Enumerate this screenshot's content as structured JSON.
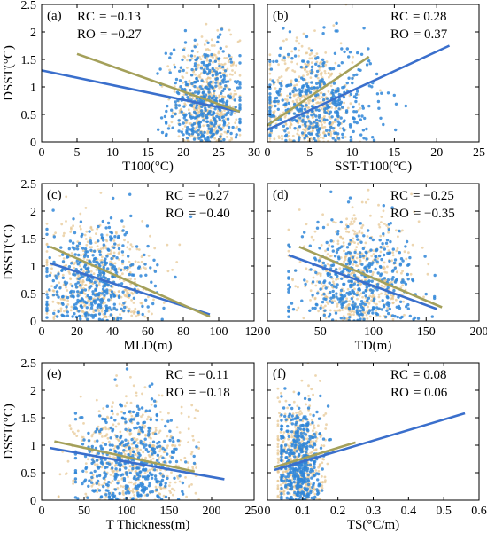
{
  "colors": {
    "cmip": "#2a6fd6",
    "obs": "#e2c48a",
    "cmip_line": "#3a6fcc",
    "obs_line": "#a4a05a",
    "scatter_cmip": "#2f86d8",
    "scatter_obs": "#e6c58f"
  },
  "chart_data": [
    {
      "type": "scatter",
      "panel": "(a)",
      "xlabel": "T100(°C)",
      "ylabel": "DSST(°C)",
      "xlim": [
        0,
        30
      ],
      "ylim": [
        0,
        2.5
      ],
      "xticks": [
        "0",
        "5",
        "10",
        "15",
        "20",
        "25",
        "30"
      ],
      "yticks": [
        "0",
        "0.5",
        "1",
        "1.5",
        "2",
        "2.5"
      ],
      "corr": {
        "c_label": "RC",
        "c_value": "= −0.13",
        "o_label": "RO",
        "o_value": "= −0.27"
      },
      "fits": [
        {
          "series": "cmip",
          "x": [
            0,
            28
          ],
          "y": [
            1.3,
            0.55
          ]
        },
        {
          "series": "obs",
          "x": [
            5,
            28
          ],
          "y": [
            1.6,
            0.55
          ]
        }
      ],
      "clouds": [
        {
          "series": "obs",
          "xc": 23.5,
          "xs": 2.2,
          "yc": 0.75,
          "ys": 0.55,
          "n": 500,
          "xmin": 17,
          "xmax": 28
        },
        {
          "series": "cmip",
          "xc": 23.0,
          "xs": 2.6,
          "yc": 0.7,
          "ys": 0.55,
          "n": 380,
          "xmin": 2,
          "xmax": 28
        }
      ]
    },
    {
      "type": "scatter",
      "panel": "(b)",
      "xlabel": "SST-T100(°C)",
      "ylabel": "",
      "xlim": [
        0,
        25
      ],
      "ylim": [
        0,
        2.5
      ],
      "xticks": [
        "0",
        "5",
        "10",
        "15",
        "20",
        "25"
      ],
      "yticks": [],
      "corr": {
        "c_label": "RC",
        "c_value": "= 0.28",
        "o_label": "RO",
        "o_value": "= 0.37"
      },
      "fits": [
        {
          "series": "cmip",
          "x": [
            0,
            21.5
          ],
          "y": [
            0.22,
            1.75
          ]
        },
        {
          "series": "obs",
          "x": [
            0,
            12
          ],
          "y": [
            0.3,
            1.55
          ]
        }
      ],
      "clouds": [
        {
          "series": "obs",
          "xc": 5,
          "xs": 2.6,
          "yc": 0.7,
          "ys": 0.55,
          "n": 480,
          "xmin": 0.3,
          "xmax": 14
        },
        {
          "series": "cmip",
          "xc": 6,
          "xs": 3.6,
          "yc": 0.7,
          "ys": 0.55,
          "n": 380,
          "xmin": 0.3,
          "xmax": 22
        }
      ]
    },
    {
      "type": "scatter",
      "panel": "(c)",
      "xlabel": "MLD(m)",
      "ylabel": "DSST(°C)",
      "xlim": [
        0,
        120
      ],
      "ylim": [
        0,
        2.5
      ],
      "xticks": [
        "0",
        "20",
        "40",
        "60",
        "80",
        "100",
        "120"
      ],
      "yticks": [
        "0",
        "0.5",
        "1",
        "1.5",
        "2",
        "2.5"
      ],
      "corr": {
        "c_label": "RC",
        "c_value": "= −0.27",
        "o_label": "RO",
        "o_value": "= −0.40"
      },
      "fits": [
        {
          "series": "cmip",
          "x": [
            5,
            95
          ],
          "y": [
            1.05,
            0.12
          ]
        },
        {
          "series": "obs",
          "x": [
            5,
            95
          ],
          "y": [
            1.35,
            0.08
          ]
        }
      ],
      "clouds": [
        {
          "series": "obs",
          "xc": 32,
          "xs": 16,
          "yc": 0.75,
          "ys": 0.55,
          "n": 480,
          "xmin": 3,
          "xmax": 92
        },
        {
          "series": "cmip",
          "xc": 30,
          "xs": 15,
          "yc": 0.7,
          "ys": 0.55,
          "n": 400,
          "xmin": 3,
          "xmax": 95
        }
      ]
    },
    {
      "type": "scatter",
      "panel": "(d)",
      "xlabel": "TD(m)",
      "ylabel": "",
      "xlim": [
        0,
        200
      ],
      "ylim": [
        0,
        2.5
      ],
      "xticks": [
        "0",
        "50",
        "100",
        "150",
        "200"
      ],
      "yticks": [],
      "corr": {
        "c_label": "RC",
        "c_value": "= −0.25",
        "o_label": "RO",
        "o_value": "= −0.35"
      },
      "fits": [
        {
          "series": "cmip",
          "x": [
            20,
            160
          ],
          "y": [
            1.2,
            0.22
          ]
        },
        {
          "series": "obs",
          "x": [
            30,
            165
          ],
          "y": [
            1.35,
            0.25
          ]
        }
      ],
      "clouds": [
        {
          "series": "obs",
          "xc": 85,
          "xs": 28,
          "yc": 0.75,
          "ys": 0.55,
          "n": 480,
          "xmin": 20,
          "xmax": 165
        },
        {
          "series": "cmip",
          "xc": 85,
          "xs": 28,
          "yc": 0.7,
          "ys": 0.55,
          "n": 400,
          "xmin": 20,
          "xmax": 160
        }
      ]
    },
    {
      "type": "scatter",
      "panel": "(e)",
      "xlabel": "T Thickness(m)",
      "ylabel": "DSST(°C)",
      "xlim": [
        0,
        250
      ],
      "ylim": [
        0,
        2.5
      ],
      "xticks": [
        "0",
        "50",
        "100",
        "150",
        "200",
        "250"
      ],
      "yticks": [
        "0",
        "0.5",
        "1",
        "1.5",
        "2",
        "2.5"
      ],
      "corr": {
        "c_label": "RC",
        "c_value": "= −0.11",
        "o_label": "RO",
        "o_value": "= −0.18"
      },
      "fits": [
        {
          "series": "cmip",
          "x": [
            10,
            215
          ],
          "y": [
            0.95,
            0.38
          ]
        },
        {
          "series": "obs",
          "x": [
            15,
            180
          ],
          "y": [
            1.07,
            0.52
          ]
        }
      ],
      "clouds": [
        {
          "series": "obs",
          "xc": 110,
          "xs": 35,
          "yc": 0.75,
          "ys": 0.55,
          "n": 480,
          "xmin": 20,
          "xmax": 185
        },
        {
          "series": "cmip",
          "xc": 105,
          "xs": 32,
          "yc": 0.7,
          "ys": 0.55,
          "n": 400,
          "xmin": 40,
          "xmax": 185
        }
      ]
    },
    {
      "type": "scatter",
      "panel": "(f)",
      "xlabel": "TS(°C/m)",
      "ylabel": "",
      "xlim": [
        0,
        0.6
      ],
      "ylim": [
        0,
        2.5
      ],
      "xticks": [
        "0",
        "0.1",
        "0.2",
        "0.3",
        "0.4",
        "0.5",
        "0.6"
      ],
      "yticks": [],
      "corr": {
        "c_label": "RC",
        "c_value": "= 0.08",
        "o_label": "RO",
        "o_value": "= 0.06"
      },
      "fits": [
        {
          "series": "cmip",
          "x": [
            0.02,
            0.56
          ],
          "y": [
            0.55,
            1.58
          ]
        },
        {
          "series": "obs",
          "x": [
            0.02,
            0.25
          ],
          "y": [
            0.6,
            1.05
          ]
        }
      ],
      "clouds": [
        {
          "series": "obs",
          "xc": 0.09,
          "xs": 0.035,
          "yc": 0.75,
          "ys": 0.55,
          "n": 480,
          "xmin": 0.03,
          "xmax": 0.25
        },
        {
          "series": "cmip",
          "xc": 0.09,
          "xs": 0.03,
          "yc": 0.7,
          "ys": 0.55,
          "n": 400,
          "xmin": 0.04,
          "xmax": 0.56
        }
      ]
    }
  ]
}
